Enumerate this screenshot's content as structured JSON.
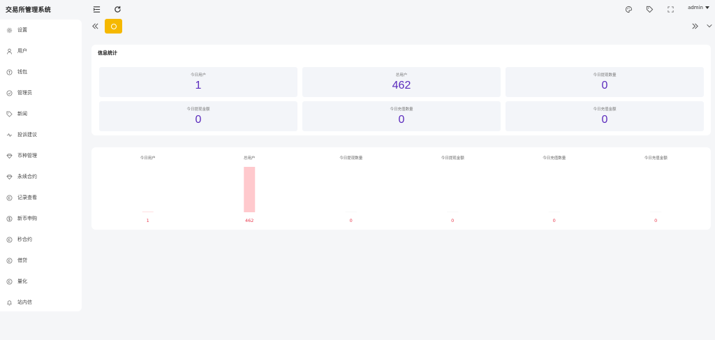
{
  "app": {
    "title": "交易所管理系统"
  },
  "header": {
    "user": "admin"
  },
  "sidebar": {
    "items": [
      {
        "label": "设置",
        "icon": "gear-icon"
      },
      {
        "label": "用户",
        "icon": "user-icon"
      },
      {
        "label": "钱包",
        "icon": "wallet-icon"
      },
      {
        "label": "管理员",
        "icon": "admin-icon"
      },
      {
        "label": "新闻",
        "icon": "tag-icon"
      },
      {
        "label": "投诉建议",
        "icon": "complaint-icon"
      },
      {
        "label": "币种管理",
        "icon": "diamond-icon"
      },
      {
        "label": "永续合约",
        "icon": "diamond-icon"
      },
      {
        "label": "记录查看",
        "icon": "record-icon"
      },
      {
        "label": "新币申购",
        "icon": "coin-icon"
      },
      {
        "label": "秒合约",
        "icon": "clock-icon"
      },
      {
        "label": "借贷",
        "icon": "clock-icon"
      },
      {
        "label": "量化",
        "icon": "clock-icon"
      },
      {
        "label": "站内信",
        "icon": "bell-icon"
      }
    ]
  },
  "stats": {
    "title": "信息统计",
    "cards": [
      {
        "label": "今日用户",
        "value": "1"
      },
      {
        "label": "总用户",
        "value": "462"
      },
      {
        "label": "今日提现数量",
        "value": "0"
      },
      {
        "label": "今日提现金额",
        "value": "0"
      },
      {
        "label": "今日充值数量",
        "value": "0"
      },
      {
        "label": "今日充值金额",
        "value": "0"
      }
    ]
  },
  "chart_data": {
    "type": "bar",
    "categories": [
      "今日用户",
      "总用户",
      "今日提现数量",
      "今日提现金额",
      "今日充值数量",
      "今日充值金额"
    ],
    "values": [
      1,
      462,
      0,
      0,
      0,
      0
    ],
    "data_labels": [
      "1",
      "462",
      "0",
      "0",
      "0",
      "0"
    ],
    "bar_color": "#ffc9cd",
    "label_color": "#e8384d",
    "ylim": [
      0,
      462
    ]
  },
  "colors": {
    "accent": "#f5b800",
    "value": "#5b2bbd"
  }
}
